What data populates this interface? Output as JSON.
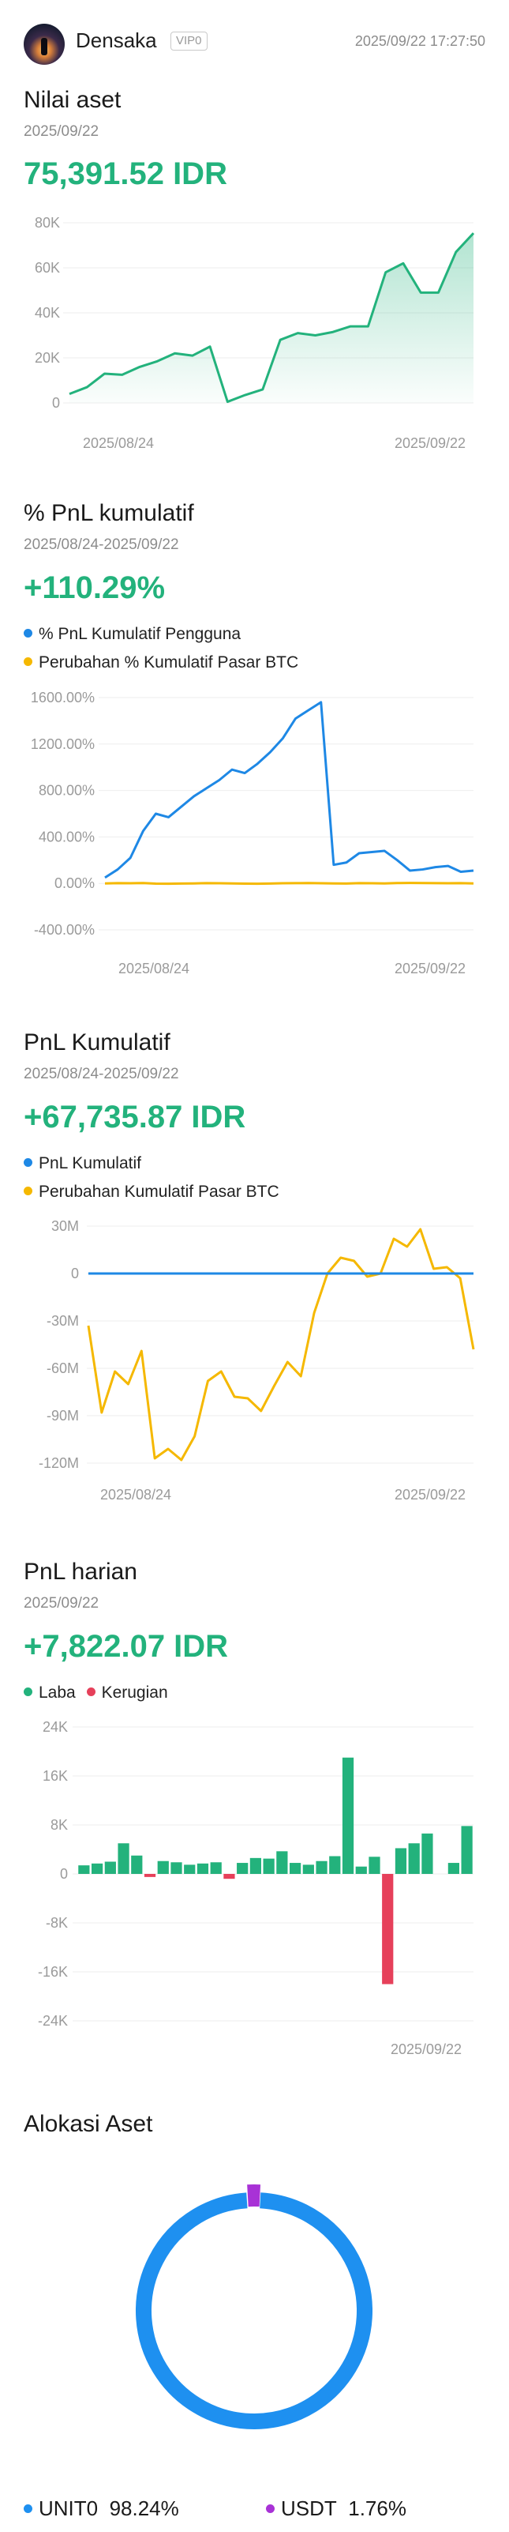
{
  "header": {
    "username": "Densaka",
    "vip_badge": "VIP0",
    "timestamp": "2025/09/22 17:27:50"
  },
  "asset_value": {
    "title": "Nilai aset",
    "date": "2025/09/22",
    "amount": "75,391.52 IDR"
  },
  "pnl_percent": {
    "title": "% PnL kumulatif",
    "date_range": "2025/08/24-2025/09/22",
    "amount": "+110.29%",
    "legend_user": "% PnL Kumulatif Pengguna",
    "legend_btc": "Perubahan % Kumulatif Pasar BTC"
  },
  "pnl_cumulative": {
    "title": "PnL Kumulatif",
    "date_range": "2025/08/24-2025/09/22",
    "amount": "+67,735.87 IDR",
    "legend_user": "PnL Kumulatif",
    "legend_btc": "Perubahan Kumulatif Pasar BTC"
  },
  "pnl_daily": {
    "title": "PnL harian",
    "date": "2025/09/22",
    "amount": "+7,822.07 IDR",
    "legend_profit": "Laba",
    "legend_loss": "Kerugian"
  },
  "allocation": {
    "title": "Alokasi Aset",
    "items": [
      {
        "name": "UNIT0",
        "percent": "98.24%",
        "value": 98.24,
        "color": "#1e90f0"
      },
      {
        "name": "USDT",
        "percent": "1.76%",
        "value": 1.76,
        "color": "#a832d6"
      }
    ]
  },
  "colors": {
    "green": "#23b27c",
    "blue": "#1e88e5",
    "yellow": "#f5b800",
    "red": "#e6405a",
    "grid": "#eeeeee",
    "axis_text": "#9a9a9a"
  },
  "chart_data": [
    {
      "id": "asset",
      "type": "area",
      "x_start": "2025/08/24",
      "x_end": "2025/09/22",
      "xticks": [
        "2025/08/24",
        "2025/09/22"
      ],
      "yticks": [
        "80K",
        "60K",
        "40K",
        "20K",
        "0"
      ],
      "ytick_values": [
        80000,
        60000,
        40000,
        20000,
        0
      ],
      "ylim": [
        0,
        80000
      ],
      "grid": true,
      "series": [
        {
          "color": "#23b27c",
          "values": [
            4000,
            7000,
            13000,
            12500,
            16000,
            18500,
            22000,
            21000,
            25000,
            500,
            3500,
            6000,
            28000,
            31000,
            30000,
            31500,
            34000,
            34000,
            58000,
            62000,
            49000,
            49000,
            67000,
            75400
          ]
        }
      ]
    },
    {
      "id": "pnl_pct",
      "type": "line",
      "x_start": "2025/08/24",
      "x_end": "2025/09/22",
      "xticks": [
        "2025/08/24",
        "2025/09/22"
      ],
      "yticks": [
        "1600.00%",
        "1200.00%",
        "800.00%",
        "400.00%",
        "0.00%",
        "-400.00%"
      ],
      "ytick_values": [
        1600,
        1200,
        800,
        400,
        0,
        -400
      ],
      "ylim": [
        -400,
        1600
      ],
      "grid": true,
      "series": [
        {
          "color": "#1e88e5",
          "values": [
            50,
            120,
            220,
            450,
            600,
            570,
            660,
            750,
            820,
            890,
            980,
            950,
            1030,
            1130,
            1250,
            1420,
            1490,
            1560,
            160,
            180,
            260,
            270,
            280,
            200,
            110,
            120,
            140,
            150,
            100,
            110
          ]
        },
        {
          "color": "#f5b800",
          "values": [
            0,
            2,
            1,
            3,
            -2,
            -3,
            -1,
            0,
            2,
            1,
            0,
            -2,
            -3,
            -1,
            1,
            2,
            3,
            1,
            0,
            -1,
            2,
            1,
            0,
            3,
            4,
            3,
            2,
            1,
            2,
            0
          ]
        }
      ]
    },
    {
      "id": "pnl_cum",
      "type": "line",
      "x_start": "2025/08/24",
      "x_end": "2025/09/22",
      "xticks": [
        "2025/08/24",
        "2025/09/22"
      ],
      "yticks": [
        "30M",
        "0",
        "-30M",
        "-60M",
        "-90M",
        "-120M"
      ],
      "ytick_values": [
        30,
        0,
        -30,
        -60,
        -90,
        -120
      ],
      "ylim": [
        -120,
        30
      ],
      "grid": true,
      "series": [
        {
          "color": "#1e88e5",
          "values": [
            0,
            0,
            0,
            0,
            0,
            0,
            0,
            0,
            0,
            0,
            0,
            0,
            0,
            0,
            0,
            0,
            0,
            0,
            0,
            0,
            0,
            0,
            0,
            0,
            0,
            0,
            0,
            0,
            0,
            0
          ]
        },
        {
          "color": "#f5b800",
          "values": [
            -33,
            -88,
            -62,
            -70,
            -49,
            -117,
            -111,
            -118,
            -103,
            -68,
            -62,
            -78,
            -79,
            -87,
            -71,
            -56,
            -65,
            -25,
            0,
            10,
            8,
            -2,
            0,
            22,
            17,
            28,
            3,
            4,
            -3,
            -48
          ]
        }
      ]
    },
    {
      "id": "pnl_daily",
      "type": "bar",
      "x_start": "2025/08/24",
      "x_end": "2025/09/22",
      "xticks": [
        "2025/09/22"
      ],
      "yticks": [
        "24K",
        "16K",
        "8K",
        "0",
        "-8K",
        "-16K",
        "-24K"
      ],
      "ytick_values": [
        24000,
        16000,
        8000,
        0,
        -8000,
        -16000,
        -24000
      ],
      "ylim": [
        -24000,
        24000
      ],
      "grid": true,
      "series": [
        {
          "name": "Laba",
          "color": "#23b27c"
        },
        {
          "name": "Kerugian",
          "color": "#e6405a"
        }
      ],
      "values": [
        1400,
        1700,
        2000,
        5000,
        3000,
        -500,
        2100,
        1900,
        1500,
        1700,
        1900,
        -800,
        1800,
        2600,
        2500,
        3700,
        1800,
        1500,
        2100,
        2900,
        19000,
        1200,
        2800,
        -18000,
        4200,
        5000,
        6600,
        0,
        1800,
        7822
      ]
    }
  ]
}
